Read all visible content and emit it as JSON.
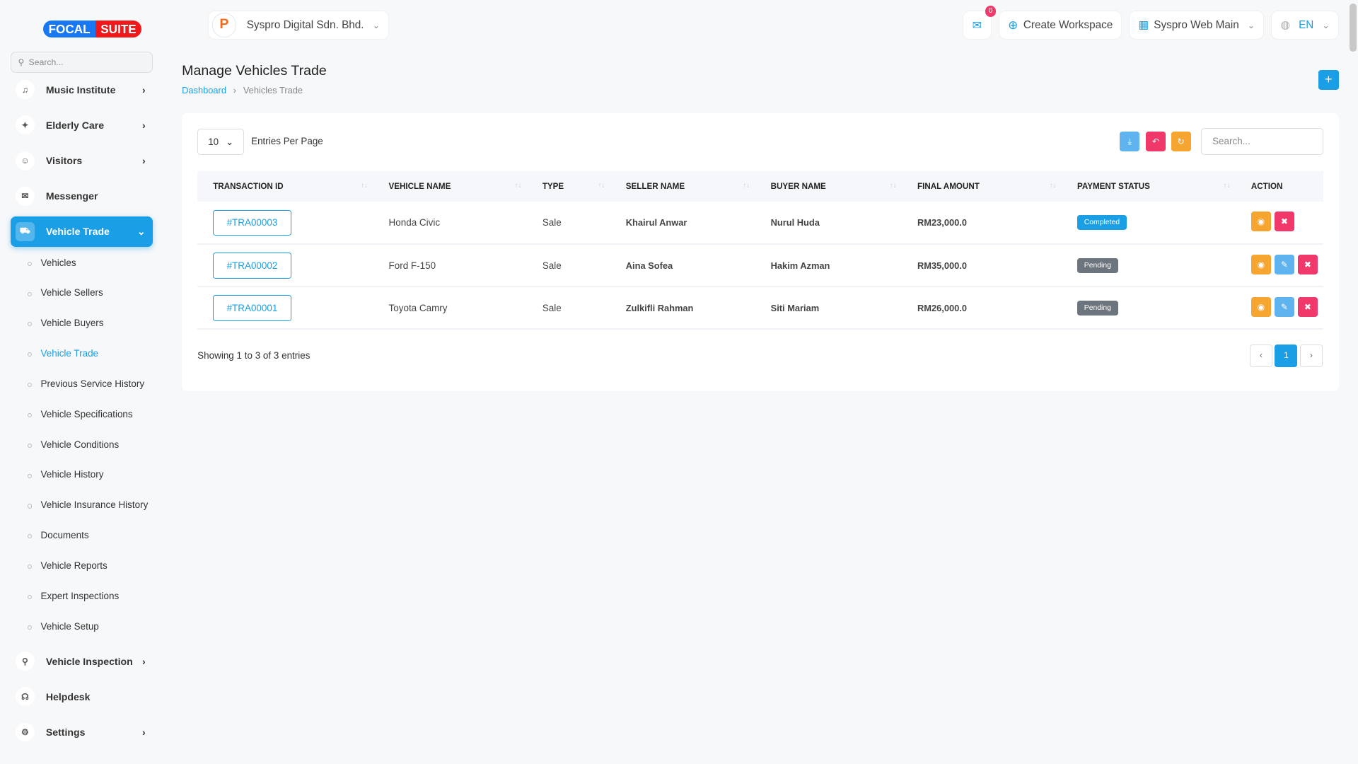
{
  "brand": {
    "logo_left": "FOCAL",
    "logo_right": "SUITE"
  },
  "sidebar": {
    "search_placeholder": "Search...",
    "items_top": [
      {
        "label": "Music Institute",
        "icon": "music-icon"
      },
      {
        "label": "Elderly Care",
        "icon": "walking-icon"
      },
      {
        "label": "Visitors",
        "icon": "person-icon"
      },
      {
        "label": "Messenger",
        "icon": "chat-icon"
      }
    ],
    "active": {
      "label": "Vehicle Trade",
      "icon": "truck-icon"
    },
    "sub_items": [
      "Vehicles",
      "Vehicle Sellers",
      "Vehicle Buyers",
      "Vehicle Trade",
      "Previous Service History",
      "Vehicle Specifications",
      "Vehicle Conditions",
      "Vehicle History",
      "Vehicle Insurance History",
      "Documents",
      "Vehicle Reports",
      "Expert Inspections",
      "Vehicle Setup"
    ],
    "active_sub": "Vehicle Trade",
    "items_bottom": [
      {
        "label": "Vehicle Inspection",
        "icon": "bike-icon"
      },
      {
        "label": "Helpdesk",
        "icon": "headset-icon"
      },
      {
        "label": "Settings",
        "icon": "gear-icon"
      }
    ]
  },
  "topbar": {
    "company": "Syspro Digital Sdn. Bhd.",
    "notif_count": "0",
    "create_workspace": "Create Workspace",
    "workspace": "Syspro Web Main",
    "language": "EN"
  },
  "page": {
    "title": "Manage Vehicles Trade",
    "breadcrumb": [
      "Dashboard",
      "Vehicles Trade"
    ],
    "add_label": "+"
  },
  "table": {
    "per_page": "10",
    "per_page_label": "Entries Per Page",
    "search_placeholder": "Search...",
    "columns": [
      "TRANSACTION ID",
      "VEHICLE NAME",
      "TYPE",
      "SELLER NAME",
      "BUYER NAME",
      "FINAL AMOUNT",
      "PAYMENT STATUS",
      "ACTION"
    ],
    "rows": [
      {
        "id": "#TRA00003",
        "vehicle": "Honda Civic",
        "type": "Sale",
        "seller": "Khairul Anwar",
        "buyer": "Nurul Huda",
        "amount": "RM23,000.0",
        "status": "Completed",
        "editable": false
      },
      {
        "id": "#TRA00002",
        "vehicle": "Ford F-150",
        "type": "Sale",
        "seller": "Aina Sofea",
        "buyer": "Hakim Azman",
        "amount": "RM35,000.0",
        "status": "Pending",
        "editable": true
      },
      {
        "id": "#TRA00001",
        "vehicle": "Toyota Camry",
        "type": "Sale",
        "seller": "Zulkifli Rahman",
        "buyer": "Siti Mariam",
        "amount": "RM26,000.0",
        "status": "Pending",
        "editable": true
      }
    ],
    "showing": "Showing 1 to 3 of 3 entries",
    "current_page": "1"
  },
  "colors": {
    "primary": "#1a9ee6",
    "danger": "#f0386b",
    "warning": "#f7a531",
    "completed": "#1a9ee6",
    "pending": "#6c757d",
    "info": "#5fb3ee"
  }
}
